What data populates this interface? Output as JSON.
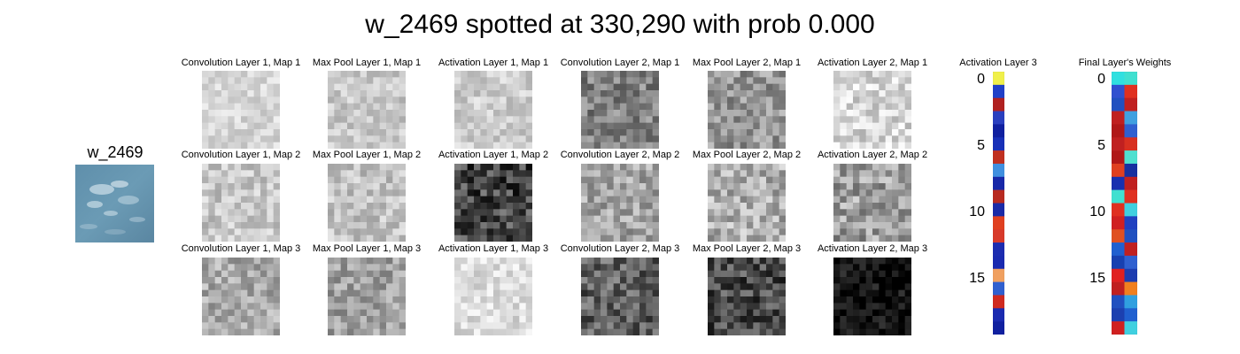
{
  "figure": {
    "title": "w_2469 spotted at 330,290 with prob 0.000"
  },
  "input": {
    "label": "w_2469",
    "image_description": "aerial photo of ocean water, blue with white specks"
  },
  "feature_maps": {
    "panel_titles": [
      [
        "Convolution Layer 1, Map 1",
        "Max Pool Layer 1, Map 1",
        "Activation Layer 1, Map 1",
        "Convolution Layer 2, Map 1",
        "Max Pool Layer 2, Map 1",
        "Activation Layer 2, Map 1"
      ],
      [
        "Convolution Layer 1, Map 2",
        "Max Pool Layer 1, Map 2",
        "Activation Layer 1, Map 2",
        "Convolution Layer 2, Map 2",
        "Max Pool Layer 2, Map 2",
        "Activation Layer 2, Map 2"
      ],
      [
        "Convolution Layer 1, Map 3",
        "Max Pool Layer 1, Map 3",
        "Activation Layer 1, Map 3",
        "Convolution Layer 2, Map 3",
        "Max Pool Layer 2, Map 3",
        "Activation Layer 2, Map 3"
      ]
    ],
    "colormap": "grayscale"
  },
  "activation_layer3": {
    "title": "Activation Layer 3",
    "ticks": [
      "0",
      "5",
      "10",
      "15"
    ],
    "colormap": "jet",
    "cells": 20
  },
  "final_weights": {
    "title": "Final Layer's Weights",
    "ticks": [
      "0",
      "5",
      "10",
      "15"
    ],
    "colormap": "jet",
    "cells": 20
  }
}
